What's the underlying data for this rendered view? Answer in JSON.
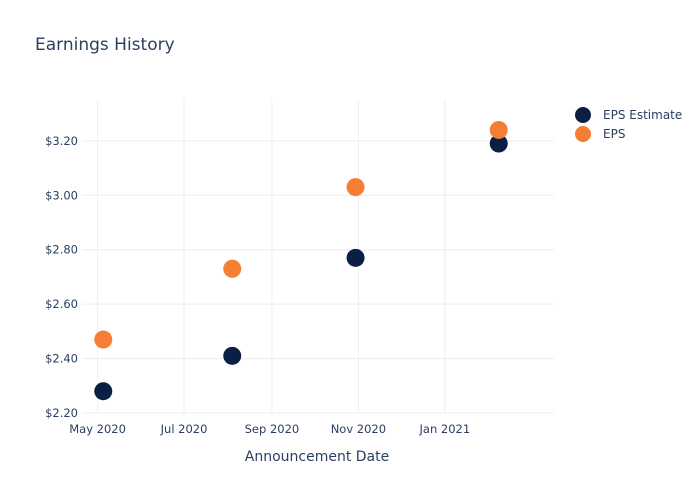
{
  "chart_data": {
    "type": "scatter",
    "title": "Earnings History",
    "xlabel": "Announcement Date",
    "ylabel": "",
    "x_tick_labels": [
      "May 2020",
      "Jul 2020",
      "Sep 2020",
      "Nov 2020",
      "Jan 2021"
    ],
    "y_tick_labels": [
      "$2.20",
      "$2.40",
      "$2.60",
      "$2.80",
      "$3.00",
      "$3.20"
    ],
    "y_ticks": [
      2.2,
      2.4,
      2.6,
      2.8,
      3.0,
      3.2
    ],
    "x_ticks": [
      "2020-05-01",
      "2020-07-01",
      "2020-09-01",
      "2020-11-01",
      "2021-01-01"
    ],
    "xlim": [
      "2020-04-20",
      "2021-03-19"
    ],
    "ylim": [
      2.2,
      3.35
    ],
    "grid": true,
    "legend_position": "top-right",
    "series": [
      {
        "name": "EPS Estimate",
        "color": "#0b1f44",
        "points": [
          {
            "x": "2020-05-05",
            "y": 2.28
          },
          {
            "x": "2020-08-04",
            "y": 2.41
          },
          {
            "x": "2020-10-30",
            "y": 2.77
          },
          {
            "x": "2021-02-08",
            "y": 3.19
          }
        ]
      },
      {
        "name": "EPS",
        "color": "#f57d34",
        "points": [
          {
            "x": "2020-05-05",
            "y": 2.47
          },
          {
            "x": "2020-08-04",
            "y": 2.73
          },
          {
            "x": "2020-10-30",
            "y": 3.03
          },
          {
            "x": "2021-02-08",
            "y": 3.24
          }
        ]
      }
    ]
  }
}
